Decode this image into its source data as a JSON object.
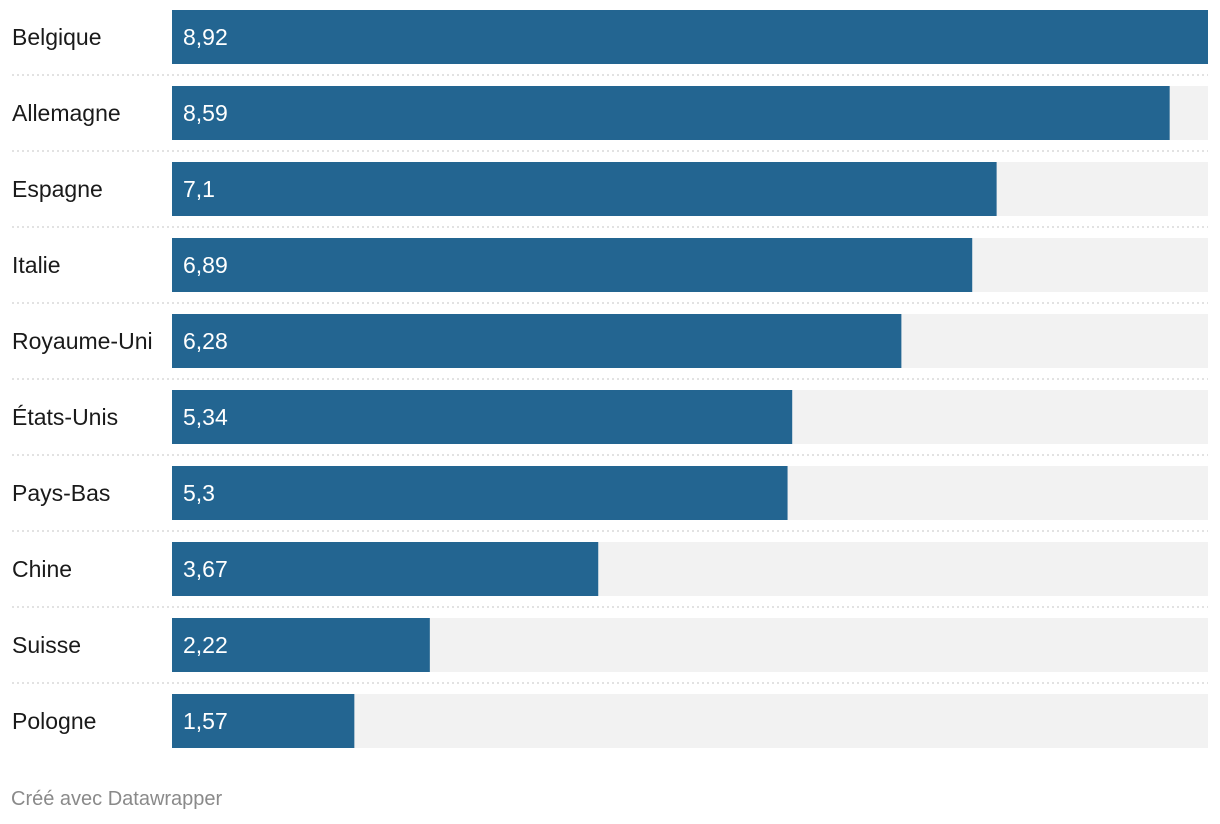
{
  "chart_data": {
    "type": "bar",
    "orientation": "horizontal",
    "categories": [
      "Belgique",
      "Allemagne",
      "Espagne",
      "Italie",
      "Royaume-Uni",
      "États-Unis",
      "Pays-Bas",
      "Chine",
      "Suisse",
      "Pologne"
    ],
    "values": [
      8.92,
      8.59,
      7.1,
      6.89,
      6.28,
      5.34,
      5.3,
      3.67,
      2.22,
      1.57
    ],
    "value_labels": [
      "8,92",
      "8,59",
      "7,1",
      "6,89",
      "6,28",
      "5,34",
      "5,3",
      "3,67",
      "2,22",
      "1,57"
    ],
    "xlim": [
      0,
      8.92
    ],
    "bar_color": "#236591",
    "track_color": "#f2f2f2",
    "separator_color": "#d0d0d0",
    "grid": false,
    "legend": "none"
  },
  "footer": {
    "credit": "Créé avec Datawrapper"
  }
}
